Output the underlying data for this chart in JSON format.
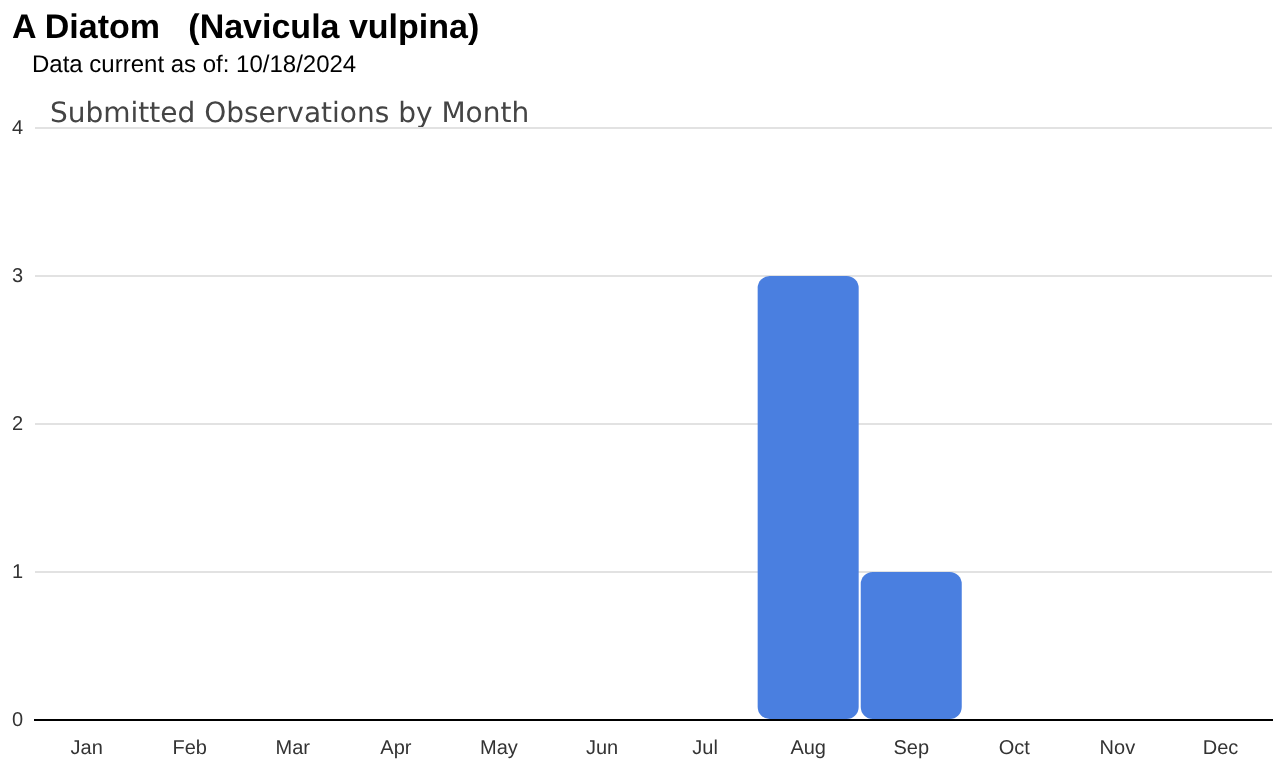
{
  "chart_data": {
    "type": "bar",
    "title": "A Diatom   (Navicula vulpina)",
    "subtitle": "Submitted Observations by Month",
    "annotations": [
      "Data current as of: 10/18/2024"
    ],
    "categories": [
      "Jan",
      "Feb",
      "Mar",
      "Apr",
      "May",
      "Jun",
      "Jul",
      "Aug",
      "Sep",
      "Oct",
      "Nov",
      "Dec"
    ],
    "values": [
      0,
      0,
      0,
      0,
      0,
      0,
      0,
      3,
      1,
      0,
      0,
      0
    ],
    "color": "#4a7fe0",
    "ylim": [
      0,
      4
    ],
    "yticks": [
      0,
      1,
      2,
      3,
      4
    ],
    "grid": "y",
    "legend": false
  }
}
